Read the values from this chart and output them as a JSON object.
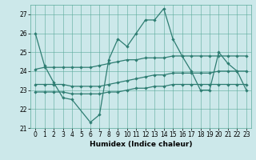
{
  "xlabel": "Humidex (Indice chaleur)",
  "xlim": [
    -0.5,
    23.5
  ],
  "ylim": [
    21,
    27.5
  ],
  "yticks": [
    21,
    22,
    23,
    24,
    25,
    26,
    27
  ],
  "xticks": [
    0,
    1,
    2,
    3,
    4,
    5,
    6,
    7,
    8,
    9,
    10,
    11,
    12,
    13,
    14,
    15,
    16,
    17,
    18,
    19,
    20,
    21,
    22,
    23
  ],
  "bg_color": "#cce8ea",
  "line_color": "#2e7d72",
  "series": [
    {
      "x": [
        0,
        1,
        2,
        3,
        4,
        6,
        7,
        8,
        9,
        10,
        11,
        12,
        13,
        14,
        15,
        16,
        17,
        18,
        19,
        20,
        21,
        22,
        23
      ],
      "y": [
        26.0,
        24.3,
        23.4,
        22.6,
        22.5,
        21.3,
        21.7,
        24.6,
        25.7,
        25.3,
        26.0,
        26.7,
        26.7,
        27.3,
        25.7,
        24.8,
        24.0,
        23.0,
        23.0,
        25.0,
        24.4,
        24.0,
        23.0
      ]
    },
    {
      "x": [
        0,
        1,
        2,
        3,
        4,
        5,
        6,
        7,
        8,
        9,
        10,
        11,
        12,
        13,
        14,
        15,
        16,
        17,
        18,
        19,
        20,
        21,
        22,
        23
      ],
      "y": [
        24.1,
        24.2,
        24.2,
        24.2,
        24.2,
        24.2,
        24.2,
        24.3,
        24.4,
        24.5,
        24.6,
        24.6,
        24.7,
        24.7,
        24.7,
        24.8,
        24.8,
        24.8,
        24.8,
        24.8,
        24.8,
        24.8,
        24.8,
        24.8
      ]
    },
    {
      "x": [
        0,
        1,
        2,
        3,
        4,
        5,
        6,
        7,
        8,
        9,
        10,
        11,
        12,
        13,
        14,
        15,
        16,
        17,
        18,
        19,
        20,
        21,
        22,
        23
      ],
      "y": [
        23.3,
        23.3,
        23.3,
        23.3,
        23.2,
        23.2,
        23.2,
        23.2,
        23.3,
        23.4,
        23.5,
        23.6,
        23.7,
        23.8,
        23.8,
        23.9,
        23.9,
        23.9,
        23.9,
        23.9,
        24.0,
        24.0,
        24.0,
        24.0
      ]
    },
    {
      "x": [
        0,
        1,
        2,
        3,
        4,
        5,
        6,
        7,
        8,
        9,
        10,
        11,
        12,
        13,
        14,
        15,
        16,
        17,
        18,
        19,
        20,
        21,
        22,
        23
      ],
      "y": [
        22.9,
        22.9,
        22.9,
        22.9,
        22.8,
        22.8,
        22.8,
        22.8,
        22.9,
        22.9,
        23.0,
        23.1,
        23.1,
        23.2,
        23.2,
        23.3,
        23.3,
        23.3,
        23.3,
        23.3,
        23.3,
        23.3,
        23.3,
        23.3
      ]
    }
  ]
}
